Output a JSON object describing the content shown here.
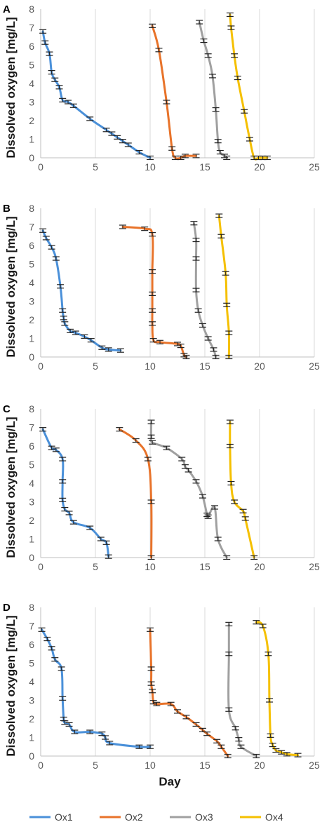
{
  "figure": {
    "x_axis_label": "Day"
  },
  "legend": {
    "position": "bottom",
    "items": [
      {
        "name": "Ox1",
        "color": "#4a90d9"
      },
      {
        "name": "Ox2",
        "color": "#e8732a"
      },
      {
        "name": "Ox3",
        "color": "#a0a0a0"
      },
      {
        "name": "Ox4",
        "color": "#f5c000"
      }
    ]
  },
  "chart_data": [
    {
      "panel": "A",
      "type": "line",
      "ylabel": "Dissolved oxygen [mg/L]",
      "xlim": [
        0,
        25
      ],
      "ylim": [
        0,
        8
      ],
      "xticks": [
        0,
        5,
        10,
        15,
        20,
        25
      ],
      "yticks": [
        0,
        1,
        2,
        3,
        4,
        5,
        6,
        7,
        8
      ],
      "grid": "vertical",
      "error_bars": true,
      "series": [
        {
          "name": "Ox1",
          "color": "#4a90d9",
          "points": [
            [
              0.2,
              6.8
            ],
            [
              0.4,
              6.2
            ],
            [
              0.8,
              5.6
            ],
            [
              1.0,
              4.6
            ],
            [
              1.3,
              4.2
            ],
            [
              1.7,
              3.8
            ],
            [
              2.0,
              3.1
            ],
            [
              2.5,
              3.0
            ],
            [
              3.0,
              2.8
            ],
            [
              4.5,
              2.1
            ],
            [
              6.0,
              1.5
            ],
            [
              6.5,
              1.3
            ],
            [
              7.0,
              1.1
            ],
            [
              7.5,
              0.9
            ],
            [
              8.0,
              0.7
            ],
            [
              9.0,
              0.3
            ],
            [
              10.0,
              0.0
            ]
          ]
        },
        {
          "name": "Ox2",
          "color": "#e8732a",
          "points": [
            [
              10.2,
              7.1
            ],
            [
              10.8,
              5.8
            ],
            [
              11.5,
              3.0
            ],
            [
              12.0,
              0.5
            ],
            [
              12.3,
              0.0
            ],
            [
              12.8,
              0.0
            ],
            [
              13.2,
              0.1
            ],
            [
              14.2,
              0.1
            ]
          ]
        },
        {
          "name": "Ox3",
          "color": "#a0a0a0",
          "points": [
            [
              14.5,
              7.3
            ],
            [
              14.9,
              6.3
            ],
            [
              15.3,
              5.5
            ],
            [
              15.7,
              4.4
            ],
            [
              16.0,
              2.6
            ],
            [
              16.2,
              0.9
            ],
            [
              16.4,
              0.3
            ],
            [
              16.8,
              0.1
            ],
            [
              17.0,
              0.0
            ]
          ]
        },
        {
          "name": "Ox4",
          "color": "#f5c000",
          "points": [
            [
              17.3,
              7.7
            ],
            [
              17.4,
              7.0
            ],
            [
              17.7,
              5.5
            ],
            [
              18.0,
              4.3
            ],
            [
              18.6,
              2.5
            ],
            [
              19.1,
              1.0
            ],
            [
              19.5,
              0.0
            ],
            [
              19.9,
              0.0
            ],
            [
              20.3,
              0.0
            ],
            [
              20.7,
              0.0
            ]
          ]
        }
      ]
    },
    {
      "panel": "B",
      "type": "line",
      "ylabel": "Dissolved oxygen [mg/L]",
      "xlim": [
        0,
        25
      ],
      "ylim": [
        0,
        8
      ],
      "xticks": [
        0,
        5,
        10,
        15,
        20,
        25
      ],
      "yticks": [
        0,
        1,
        2,
        3,
        4,
        5,
        6,
        7,
        8
      ],
      "grid": "vertical",
      "error_bars": true,
      "series": [
        {
          "name": "Ox1",
          "color": "#4a90d9",
          "points": [
            [
              0.2,
              6.8
            ],
            [
              0.5,
              6.4
            ],
            [
              1.0,
              5.9
            ],
            [
              1.4,
              5.3
            ],
            [
              1.8,
              3.8
            ],
            [
              2.0,
              2.5
            ],
            [
              2.1,
              2.1
            ],
            [
              2.2,
              1.8
            ],
            [
              2.7,
              1.4
            ],
            [
              3.2,
              1.3
            ],
            [
              4.0,
              1.1
            ],
            [
              4.6,
              0.9
            ],
            [
              5.6,
              0.5
            ],
            [
              6.2,
              0.4
            ],
            [
              7.3,
              0.35
            ]
          ]
        },
        {
          "name": "Ox2",
          "color": "#e8732a",
          "points": [
            [
              7.5,
              7.0
            ],
            [
              9.5,
              6.9
            ],
            [
              10.2,
              6.6
            ],
            [
              10.2,
              4.6
            ],
            [
              10.2,
              3.4
            ],
            [
              10.2,
              2.5
            ],
            [
              10.2,
              1.8
            ],
            [
              10.3,
              0.9
            ],
            [
              10.9,
              0.8
            ],
            [
              12.5,
              0.7
            ],
            [
              12.8,
              0.6
            ],
            [
              13.1,
              0.1
            ],
            [
              13.3,
              0.0
            ]
          ]
        },
        {
          "name": "Ox3",
          "color": "#a0a0a0",
          "points": [
            [
              14.0,
              7.2
            ],
            [
              14.2,
              6.3
            ],
            [
              14.2,
              5.3
            ],
            [
              14.2,
              3.6
            ],
            [
              14.4,
              2.5
            ],
            [
              14.8,
              1.7
            ],
            [
              15.3,
              1.0
            ],
            [
              15.8,
              0.4
            ],
            [
              16.0,
              0.0
            ]
          ]
        },
        {
          "name": "Ox4",
          "color": "#f5c000",
          "points": [
            [
              16.3,
              7.6
            ],
            [
              16.5,
              6.5
            ],
            [
              16.9,
              4.5
            ],
            [
              17.0,
              2.8
            ],
            [
              17.2,
              1.3
            ],
            [
              17.2,
              0.0
            ]
          ]
        }
      ]
    },
    {
      "panel": "C",
      "type": "line",
      "ylabel": "Dissolved oxygen [mg/L]",
      "xlim": [
        0,
        25
      ],
      "ylim": [
        0,
        8
      ],
      "xticks": [
        0,
        5,
        10,
        15,
        20,
        25
      ],
      "yticks": [
        0,
        1,
        2,
        3,
        4,
        5,
        6,
        7,
        8
      ],
      "grid": "vertical",
      "error_bars": true,
      "series": [
        {
          "name": "Ox1",
          "color": "#4a90d9",
          "points": [
            [
              0.2,
              6.9
            ],
            [
              1.0,
              5.9
            ],
            [
              1.4,
              5.8
            ],
            [
              2.0,
              5.3
            ],
            [
              2.0,
              4.1
            ],
            [
              2.0,
              3.1
            ],
            [
              2.2,
              2.6
            ],
            [
              2.6,
              2.4
            ],
            [
              3.0,
              1.9
            ],
            [
              4.5,
              1.6
            ],
            [
              5.5,
              1.0
            ],
            [
              6.0,
              0.8
            ],
            [
              6.2,
              0.05
            ]
          ]
        },
        {
          "name": "Ox2",
          "color": "#e8732a",
          "points": [
            [
              7.2,
              6.9
            ],
            [
              8.7,
              6.3
            ],
            [
              9.8,
              5.3
            ],
            [
              10.1,
              3.0
            ],
            [
              10.1,
              0.0
            ]
          ]
        },
        {
          "name": "Ox3",
          "color": "#a0a0a0",
          "points": [
            [
              10.1,
              7.3
            ],
            [
              10.1,
              6.5
            ],
            [
              10.2,
              6.2
            ],
            [
              11.5,
              5.9
            ],
            [
              12.9,
              5.3
            ],
            [
              13.2,
              4.9
            ],
            [
              13.5,
              4.7
            ],
            [
              14.2,
              4.1
            ],
            [
              14.8,
              3.3
            ],
            [
              15.2,
              2.3
            ],
            [
              15.3,
              2.2
            ],
            [
              15.9,
              2.7
            ],
            [
              16.2,
              1.0
            ],
            [
              17.0,
              0.0
            ]
          ]
        },
        {
          "name": "Ox4",
          "color": "#f5c000",
          "points": [
            [
              17.3,
              7.3
            ],
            [
              17.3,
              6.0
            ],
            [
              17.4,
              4.0
            ],
            [
              17.7,
              3.0
            ],
            [
              18.5,
              2.5
            ],
            [
              18.7,
              2.1
            ],
            [
              19.5,
              0.0
            ]
          ]
        }
      ]
    },
    {
      "panel": "D",
      "type": "line",
      "ylabel": "Dissolved oxygen [mg/L]",
      "xlim": [
        0,
        25
      ],
      "ylim": [
        0,
        8
      ],
      "xticks": [
        0,
        5,
        10,
        15,
        20,
        25
      ],
      "yticks": [
        0,
        1,
        2,
        3,
        4,
        5,
        6,
        7,
        8
      ],
      "grid": "vertical",
      "error_bars": true,
      "series": [
        {
          "name": "Ox1",
          "color": "#4a90d9",
          "points": [
            [
              0.1,
              6.8
            ],
            [
              0.6,
              6.3
            ],
            [
              1.0,
              5.8
            ],
            [
              1.3,
              5.2
            ],
            [
              1.9,
              4.7
            ],
            [
              2.0,
              3.1
            ],
            [
              2.1,
              2.0
            ],
            [
              2.2,
              1.8
            ],
            [
              2.6,
              1.7
            ],
            [
              3.1,
              1.3
            ],
            [
              4.5,
              1.3
            ],
            [
              5.6,
              1.2
            ],
            [
              5.9,
              1.0
            ],
            [
              6.3,
              0.7
            ],
            [
              9.0,
              0.5
            ],
            [
              10.0,
              0.5
            ]
          ]
        },
        {
          "name": "Ox2",
          "color": "#e8732a",
          "points": [
            [
              10.0,
              6.8
            ],
            [
              10.1,
              4.7
            ],
            [
              10.1,
              3.9
            ],
            [
              10.2,
              3.5
            ],
            [
              10.3,
              2.9
            ],
            [
              10.6,
              2.8
            ],
            [
              11.9,
              2.8
            ],
            [
              12.5,
              2.4
            ],
            [
              13.3,
              2.1
            ],
            [
              14.2,
              1.7
            ],
            [
              14.8,
              1.4
            ],
            [
              15.2,
              1.2
            ],
            [
              16.1,
              0.8
            ],
            [
              16.5,
              0.5
            ],
            [
              17.1,
              0.0
            ]
          ]
        },
        {
          "name": "Ox3",
          "color": "#a0a0a0",
          "points": [
            [
              17.2,
              7.1
            ],
            [
              17.2,
              5.5
            ],
            [
              17.2,
              2.5
            ],
            [
              17.8,
              1.5
            ],
            [
              18.1,
              0.9
            ],
            [
              18.3,
              0.5
            ],
            [
              19.7,
              0.0
            ]
          ]
        },
        {
          "name": "Ox4",
          "color": "#f5c000",
          "points": [
            [
              19.7,
              7.2
            ],
            [
              20.3,
              7.0
            ],
            [
              20.8,
              5.5
            ],
            [
              20.9,
              3.0
            ],
            [
              21.0,
              1.1
            ],
            [
              21.2,
              0.6
            ],
            [
              21.5,
              0.3
            ],
            [
              22.0,
              0.2
            ],
            [
              22.5,
              0.1
            ],
            [
              23.5,
              0.05
            ]
          ]
        }
      ]
    }
  ]
}
